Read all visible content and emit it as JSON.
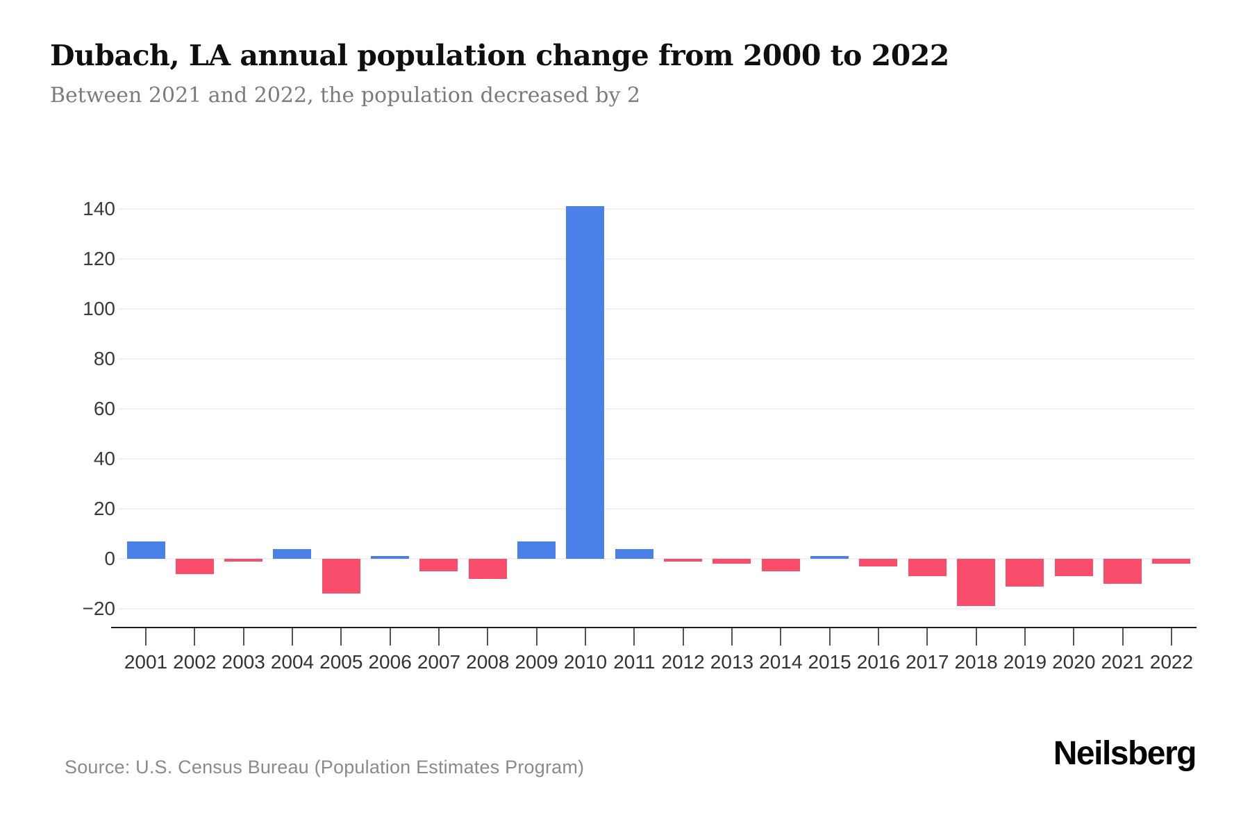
{
  "header": {
    "title": "Dubach, LA annual population change from 2000 to 2022",
    "subtitle": "Between 2021 and 2022, the population decreased by 2"
  },
  "chart_data": {
    "type": "bar",
    "title": "Dubach, LA annual population change from 2000 to 2022",
    "subtitle": "Between 2021 and 2022, the population decreased by 2",
    "categories": [
      "2001",
      "2002",
      "2003",
      "2004",
      "2005",
      "2006",
      "2007",
      "2008",
      "2009",
      "2010",
      "2011",
      "2012",
      "2013",
      "2014",
      "2015",
      "2016",
      "2017",
      "2018",
      "2019",
      "2020",
      "2021",
      "2022"
    ],
    "values": [
      7,
      -6,
      -1,
      4,
      -14,
      1,
      -5,
      -8,
      7,
      141,
      4,
      -1,
      -2,
      -5,
      1,
      -3,
      -7,
      -19,
      -11,
      -7,
      -10,
      -2
    ],
    "xlabel": "",
    "ylabel": "",
    "ylim": [
      -20,
      141
    ],
    "yticks": [
      140,
      120,
      100,
      80,
      60,
      40,
      20,
      0,
      -20
    ],
    "grid": "horizontal-light",
    "legend": "none",
    "positive_color": "#4a80e8",
    "negative_color": "#f94d6c"
  },
  "footer": {
    "source": "Source: U.S. Census Bureau (Population Estimates Program)",
    "brand": "Neilsberg"
  }
}
